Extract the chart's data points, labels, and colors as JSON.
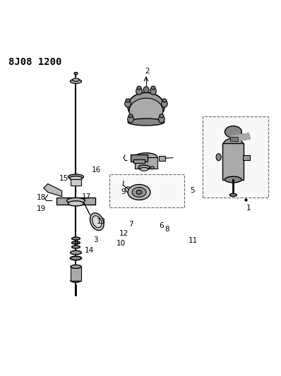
{
  "title": "8J08 1200",
  "background_color": "#ffffff",
  "line_color": "#000000",
  "label_color": "#000000",
  "figsize": [
    3.98,
    5.33
  ],
  "dpi": 100
}
